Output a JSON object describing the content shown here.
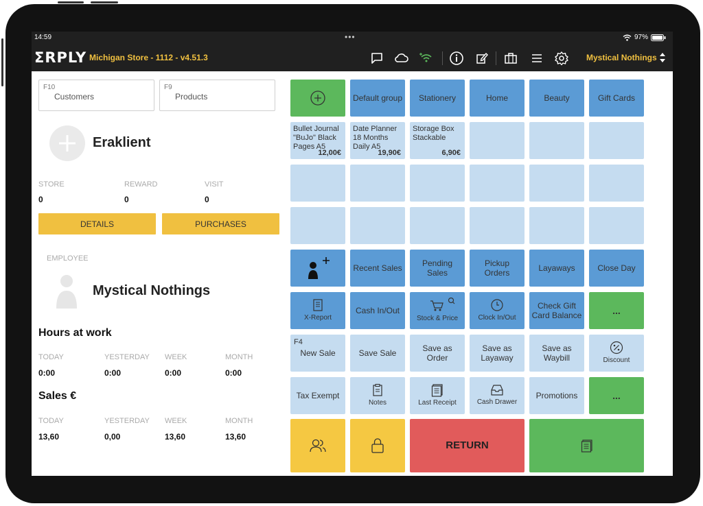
{
  "status": {
    "time": "14:59",
    "battery": "97%"
  },
  "header": {
    "logo": "ΣRPLY",
    "store": "Michigan Store - 1112 - v4.51.3",
    "user": "Mystical Nothings"
  },
  "search": {
    "customers": {
      "key": "F10",
      "label": "Customers"
    },
    "products": {
      "key": "F9",
      "label": "Products"
    }
  },
  "customer": {
    "name": "Eraklient",
    "stats": [
      {
        "label": "STORE",
        "value": "0"
      },
      {
        "label": "REWARD",
        "value": "0"
      },
      {
        "label": "VISIT",
        "value": "0"
      }
    ],
    "details_label": "DETAILS",
    "purchases_label": "PURCHASES"
  },
  "employee": {
    "label": "EMPLOYEE",
    "name": "Mystical Nothings"
  },
  "hours": {
    "title": "Hours at work",
    "stats": [
      {
        "label": "TODAY",
        "value": "0:00"
      },
      {
        "label": "YESTERDAY",
        "value": "0:00"
      },
      {
        "label": "WEEK",
        "value": "0:00"
      },
      {
        "label": "MONTH",
        "value": "0:00"
      }
    ]
  },
  "sales": {
    "title": "Sales €",
    "stats": [
      {
        "label": "TODAY",
        "value": "13,60"
      },
      {
        "label": "YESTERDAY",
        "value": "0,00"
      },
      {
        "label": "WEEK",
        "value": "13,60"
      },
      {
        "label": "MONTH",
        "value": "13,60"
      }
    ]
  },
  "groups": [
    "Default group",
    "Stationery",
    "Home",
    "Beauty",
    "Gift Cards"
  ],
  "products": [
    {
      "name": "Bullet Journal \"BuJo\" Black Pages A5",
      "price": "12,00€"
    },
    {
      "name": "Date Planner 18 Months Daily A5",
      "price": "19,90€"
    },
    {
      "name": "Storage Box Stackable",
      "price": "6,90€"
    }
  ],
  "actions": {
    "recent_sales": "Recent Sales",
    "pending_sales": "Pending Sales",
    "pickup_orders": "Pickup Orders",
    "layaways": "Layaways",
    "close_day": "Close Day",
    "x_report": "X-Report",
    "cash_in_out": "Cash In/Out",
    "stock_price": "Stock & Price",
    "clock_in_out": "Clock In/Out",
    "check_gift_card": "Check Gift Card Balance",
    "more1": "...",
    "f4": "F4",
    "new_sale": "New Sale",
    "save_sale": "Save Sale",
    "save_order": "Save as Order",
    "save_layaway": "Save as Layaway",
    "save_waybill": "Save as Waybill",
    "discount": "Discount",
    "tax_exempt": "Tax Exempt",
    "notes": "Notes",
    "last_receipt": "Last Receipt",
    "cash_drawer": "Cash Drawer",
    "promotions": "Promotions",
    "more2": "...",
    "return": "RETURN"
  },
  "colors": {
    "accent": "#f0c040",
    "green": "#5cb85c",
    "blue": "#5b9bd5",
    "light_blue": "#c5dcf0",
    "red": "#e15b5b",
    "yellow": "#f5c842"
  }
}
